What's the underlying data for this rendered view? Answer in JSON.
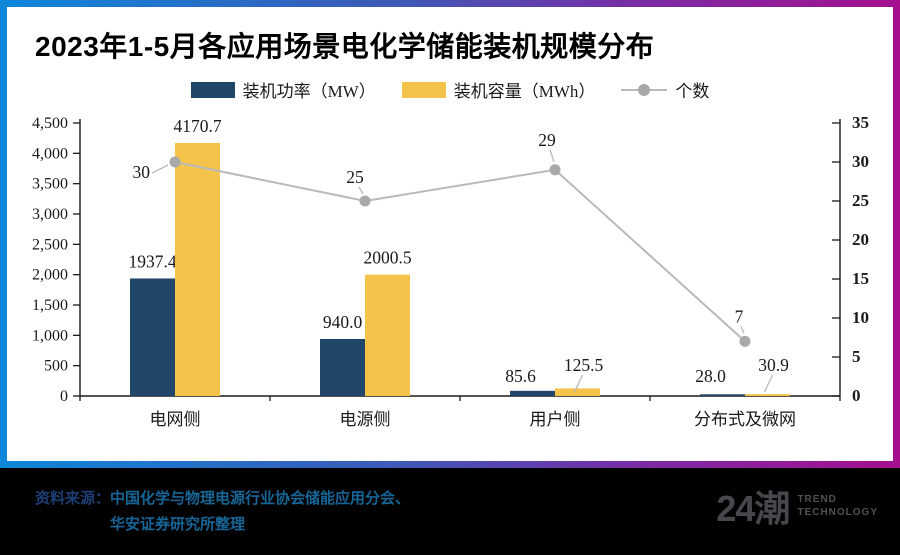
{
  "title": "2023年1-5月各应用场景电化学储能装机规模分布",
  "legend": [
    {
      "label": "装机功率（MW）",
      "color": "#204769",
      "type": "rect"
    },
    {
      "label": "装机容量（MWh）",
      "color": "#f3c34a",
      "type": "rect"
    },
    {
      "label": "个数",
      "color": "#b9b9b9",
      "type": "line"
    }
  ],
  "chart_data": {
    "type": "bar",
    "categories": [
      "电网侧",
      "电源侧",
      "用户侧",
      "分布式及微网"
    ],
    "series": [
      {
        "name": "装机功率（MW）",
        "type": "bar",
        "axis": "left",
        "color": "#204769",
        "values": [
          1937.4,
          940.0,
          85.6,
          28.0
        ],
        "labels": [
          "1937.4",
          "940.0",
          "85.6",
          "28.0"
        ]
      },
      {
        "name": "装机容量（MWh）",
        "type": "bar",
        "axis": "left",
        "color": "#f3c34a",
        "values": [
          4170.7,
          2000.5,
          125.5,
          30.9
        ],
        "labels": [
          "4170.7",
          "2000.5",
          "125.5",
          "30.9"
        ]
      },
      {
        "name": "个数",
        "type": "line",
        "axis": "right",
        "color": "#b9b9b9",
        "marker_color": "#a9a9a9",
        "values": [
          30,
          25,
          29,
          7
        ],
        "labels": [
          "30",
          "25",
          "29",
          "7"
        ]
      }
    ],
    "left_axis": {
      "min": 0,
      "max": 4500,
      "step": 500,
      "tick_labels": [
        "0",
        "500",
        "1,000",
        "1,500",
        "2,000",
        "2,500",
        "3,000",
        "3,500",
        "4,000",
        "4,500"
      ]
    },
    "right_axis": {
      "min": 0,
      "max": 35,
      "step": 5,
      "tick_labels": [
        "0",
        "5",
        "10",
        "15",
        "20",
        "25",
        "30",
        "35"
      ]
    },
    "grid": false,
    "legend_position": "top"
  },
  "footer": {
    "source_label": "资料来源：",
    "source_line1": "中国化学与物理电源行业协会储能应用分会、",
    "source_line2": "华安证券研究所整理",
    "logo_text": "24潮",
    "logo_sub1": "TREND",
    "logo_sub2": "TECHNOLOGY"
  },
  "colors": {
    "bar_power": "#204769",
    "bar_capacity": "#f3c34a",
    "count_line": "#b9b9b9",
    "count_marker": "#a9a9a9",
    "axis": "#1a1a1a",
    "frame_gradient_left": "#0d87da",
    "frame_gradient_right": "#a50f8e",
    "footer_bg": "#000000",
    "source_label_color": "#1c3e74",
    "source_text_color": "#176597",
    "logo_color": "#47474d"
  }
}
